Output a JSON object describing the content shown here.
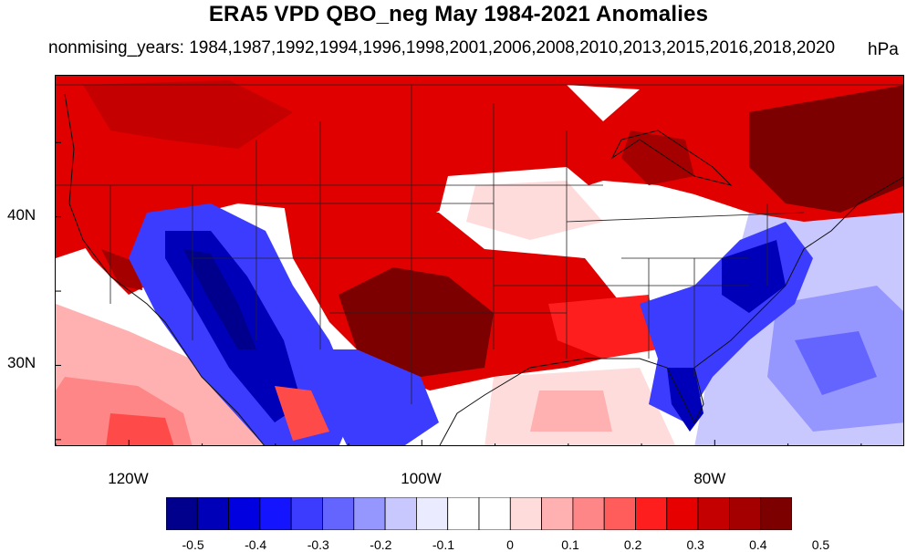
{
  "title": "ERA5 VPD QBO_neg May 1984-2021 Anomalies",
  "subtitle": "nonmising_years: 1984,1987,1992,1994,1996,1998,2001,2006,2008,2010,2013,2015,2016,2018,2020",
  "units": "hPa",
  "map": {
    "lon_range": [
      -125,
      -67
    ],
    "lat_range": [
      24.5,
      49.5
    ],
    "lat_ticks": [
      {
        "value": 40,
        "label": "40N"
      },
      {
        "value": 30,
        "label": "30N"
      }
    ],
    "lon_ticks": [
      {
        "value": -120,
        "label": "120W"
      },
      {
        "value": -100,
        "label": "100W"
      },
      {
        "value": -80,
        "label": "80W"
      }
    ]
  },
  "colorbar": {
    "colors": [
      "#00008c",
      "#0000b8",
      "#0000e0",
      "#1414ff",
      "#3c3cff",
      "#6464ff",
      "#9696ff",
      "#c8c8ff",
      "#ebebff",
      "#ffffff",
      "#ffffff",
      "#ffdcdc",
      "#ffb0b0",
      "#ff8686",
      "#ff5c5c",
      "#ff1e1e",
      "#e60000",
      "#c40000",
      "#a40000",
      "#7c0000"
    ],
    "labels": [
      "-0.5",
      "-0.4",
      "-0.3",
      "-0.2",
      "-0.1",
      "0",
      "0.1",
      "0.2",
      "0.3",
      "0.4",
      "0.5"
    ]
  },
  "field_colors": {
    "strong_pos": "#7c0000",
    "pos": "#e00000",
    "mid_pos": "#ff4a4a",
    "weak_pos": "#ffb0b0",
    "neutral": "#ffffff",
    "weak_neg": "#c8c8ff",
    "neg": "#3c3cff",
    "strong_neg": "#0000b8"
  }
}
